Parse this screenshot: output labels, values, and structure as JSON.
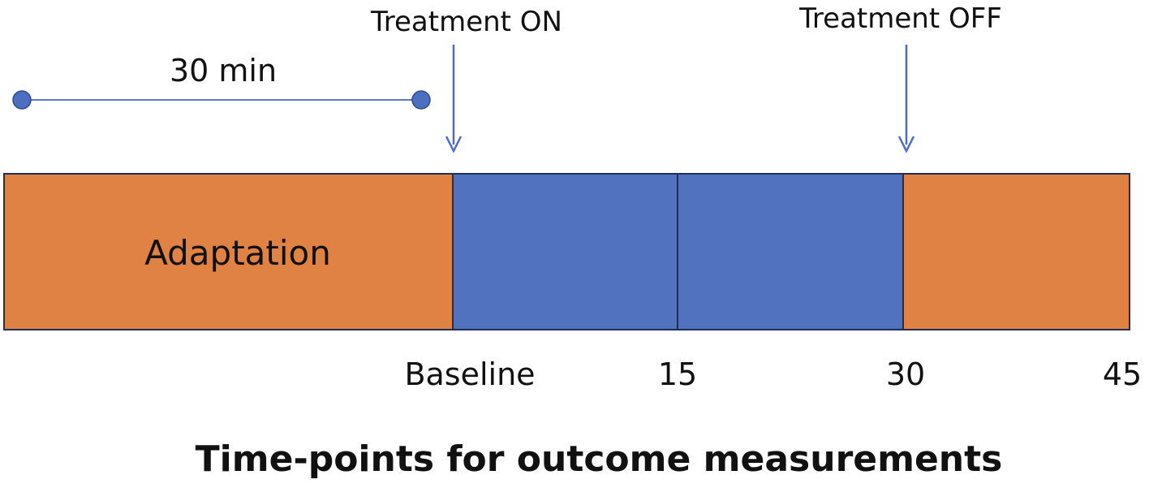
{
  "markers": {
    "treatment_on": "Treatment ON",
    "treatment_off": "Treatment OFF"
  },
  "duration_label": "30 min",
  "phases": [
    {
      "label": "Adaptation",
      "color": "#E08244"
    },
    {
      "label": "",
      "color": "#5172BF"
    },
    {
      "label": "",
      "color": "#5172BF"
    },
    {
      "label": "",
      "color": "#E08244"
    }
  ],
  "time_points": [
    "Baseline",
    "15",
    "30",
    "45"
  ],
  "caption": "Time-points for outcome measurements",
  "colors": {
    "orange": "#E08244",
    "blue": "#5172BF",
    "outline": "#1F2F57",
    "arrow": "#4A6CC2"
  }
}
